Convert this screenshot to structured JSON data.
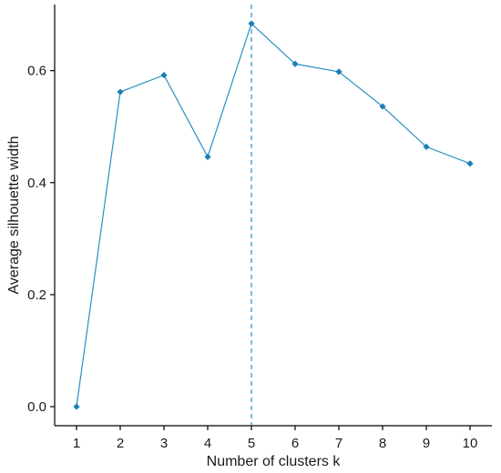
{
  "chart_data": {
    "type": "line",
    "title": "",
    "xlabel": "Number of clusters k",
    "ylabel": "Average silhouette width",
    "categories": [
      "1",
      "2",
      "3",
      "4",
      "5",
      "6",
      "7",
      "8",
      "9",
      "10"
    ],
    "x": [
      1,
      2,
      3,
      4,
      5,
      6,
      7,
      8,
      9,
      10
    ],
    "series": [
      {
        "values": [
          0.0,
          0.562,
          0.592,
          0.446,
          0.684,
          0.612,
          0.598,
          0.536,
          0.464,
          0.434
        ]
      }
    ],
    "yticks": [
      "0.0",
      "0.2",
      "0.4",
      "0.6"
    ],
    "ytick_values": [
      0.0,
      0.2,
      0.4,
      0.6
    ],
    "ylim": [
      -0.034,
      0.718
    ],
    "xlim": [
      0.5,
      10.5
    ],
    "optimal_k": 5,
    "grid": false,
    "legend": "none",
    "colors": {
      "line": "#2a8fc4",
      "marker": "#1b7fb5",
      "vline": "#2a8fc4",
      "axis": "#000000",
      "text": "#1a1a1a"
    }
  }
}
